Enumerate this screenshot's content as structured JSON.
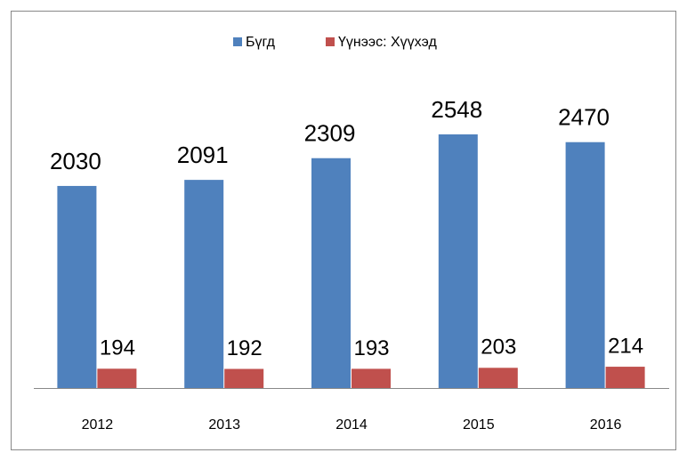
{
  "chart_data": {
    "type": "bar",
    "categories": [
      "2012",
      "2013",
      "2014",
      "2015",
      "2016"
    ],
    "series": [
      {
        "name": "Бүгд",
        "color": "#4f81bd",
        "values": [
          2030,
          2091,
          2309,
          2548,
          2470
        ]
      },
      {
        "name": "Үүнээс: Хүүхэд",
        "color": "#c0504d",
        "values": [
          194,
          192,
          193,
          203,
          214
        ]
      }
    ],
    "legend": "top"
  }
}
